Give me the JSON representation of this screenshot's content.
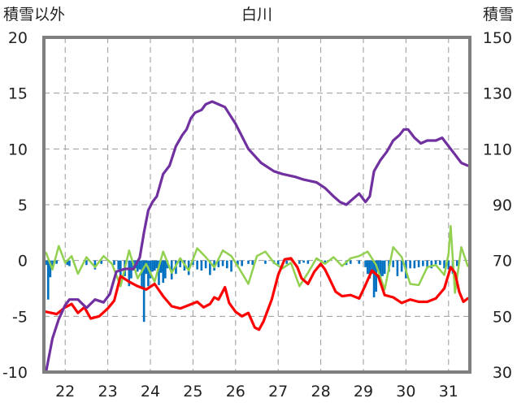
{
  "chart_data": {
    "type": "line",
    "title": "白川",
    "y_left_label": "積雪以外",
    "y_right_label": "積雪",
    "x_ticks": [
      "22",
      "23",
      "24",
      "25",
      "26",
      "27",
      "28",
      "29",
      "30",
      "31"
    ],
    "x_range": [
      21.5,
      31.5
    ],
    "y_left_range": [
      -10,
      20
    ],
    "y_left_ticks": [
      20,
      15,
      10,
      5,
      0,
      -5,
      -10
    ],
    "y_right_range": [
      30,
      150
    ],
    "y_right_ticks": [
      150,
      130,
      110,
      90,
      70,
      50,
      30
    ],
    "grid": true,
    "colors": {
      "snow_depth": "#7030a0",
      "temperature": "#ff0000",
      "sunshine": "#92d050",
      "precipitation": "#0070c0"
    },
    "series": [
      {
        "key": "snow_depth",
        "axis": "right",
        "x": [
          21.55,
          21.7,
          21.85,
          22.0,
          22.1,
          22.3,
          22.5,
          22.7,
          22.9,
          23.05,
          23.2,
          23.4,
          23.6,
          23.75,
          23.85,
          23.95,
          24.05,
          24.15,
          24.3,
          24.45,
          24.6,
          24.75,
          24.85,
          24.95,
          25.05,
          25.2,
          25.3,
          25.45,
          25.6,
          25.75,
          26.0,
          26.3,
          26.6,
          26.9,
          27.1,
          27.4,
          27.6,
          27.9,
          28.1,
          28.3,
          28.45,
          28.6,
          28.75,
          28.9,
          29.05,
          29.15,
          29.25,
          29.4,
          29.55,
          29.7,
          29.85,
          29.95,
          30.05,
          30.2,
          30.35,
          30.5,
          30.7,
          30.85,
          31.0,
          31.15,
          31.3,
          31.45
        ],
        "values": [
          30,
          42,
          49,
          54,
          56,
          56,
          53,
          56,
          55,
          58,
          66,
          67,
          67,
          71,
          80,
          88,
          91,
          93,
          101,
          104,
          111,
          115,
          117,
          121,
          123,
          124,
          126,
          127,
          126,
          125,
          119,
          110,
          105,
          102,
          101,
          100,
          99,
          98,
          96,
          93,
          91,
          90,
          92,
          94,
          91,
          93,
          102,
          106,
          109,
          113,
          115,
          117,
          117,
          114,
          112,
          113,
          113,
          114,
          111,
          108,
          105,
          104
        ]
      },
      {
        "key": "temperature",
        "axis": "left",
        "x": [
          21.55,
          21.8,
          22.0,
          22.15,
          22.3,
          22.45,
          22.6,
          22.8,
          23.0,
          23.15,
          23.3,
          23.5,
          23.7,
          23.9,
          24.1,
          24.3,
          24.5,
          24.7,
          24.9,
          25.1,
          25.25,
          25.4,
          25.5,
          25.6,
          25.75,
          25.85,
          26.0,
          26.15,
          26.3,
          26.45,
          26.55,
          26.65,
          26.75,
          26.85,
          27.0,
          27.15,
          27.3,
          27.45,
          27.55,
          27.7,
          27.85,
          28.0,
          28.1,
          28.2,
          28.35,
          28.5,
          28.7,
          28.9,
          29.05,
          29.2,
          29.35,
          29.5,
          29.7,
          29.9,
          30.1,
          30.3,
          30.5,
          30.7,
          30.9,
          31.05,
          31.15,
          31.25,
          31.35,
          31.45
        ],
        "values": [
          -4.6,
          -4.8,
          -4.2,
          -3.9,
          -4.7,
          -4.2,
          -5.2,
          -5.0,
          -4.3,
          -3.6,
          -1.4,
          -1.9,
          -2.3,
          -2.6,
          -2.1,
          -3.2,
          -4.1,
          -4.3,
          -4.0,
          -3.7,
          -4.2,
          -3.9,
          -3.3,
          -3.5,
          -2.4,
          -3.8,
          -4.6,
          -5.0,
          -4.7,
          -6.0,
          -6.2,
          -5.5,
          -4.5,
          -3.5,
          -1.3,
          0.1,
          0.2,
          -0.6,
          -1.6,
          -2.1,
          -1.0,
          -0.3,
          -0.8,
          -1.6,
          -2.8,
          -3.2,
          -3.1,
          -3.4,
          -2.2,
          -0.9,
          -1.4,
          -3.1,
          -3.3,
          -3.8,
          -3.5,
          -3.7,
          -3.7,
          -3.4,
          -2.5,
          -0.6,
          -1.1,
          -2.8,
          -3.7,
          -3.4
        ]
      },
      {
        "key": "sunshine",
        "axis": "left",
        "x": [
          21.55,
          21.7,
          21.85,
          22.0,
          22.15,
          22.3,
          22.5,
          22.7,
          22.9,
          23.1,
          23.3,
          23.5,
          23.7,
          23.9,
          24.1,
          24.3,
          24.5,
          24.7,
          24.9,
          25.1,
          25.3,
          25.5,
          25.7,
          25.9,
          26.1,
          26.3,
          26.5,
          26.7,
          26.9,
          27.1,
          27.3,
          27.5,
          27.7,
          27.9,
          28.1,
          28.3,
          28.5,
          28.7,
          28.9,
          29.1,
          29.3,
          29.5,
          29.7,
          29.9,
          30.1,
          30.3,
          30.5,
          30.7,
          30.9,
          31.0,
          31.05,
          31.15,
          31.3,
          31.45
        ],
        "values": [
          0.7,
          -0.8,
          1.3,
          -0.2,
          0.4,
          -1.2,
          0.3,
          -0.6,
          0.4,
          -0.3,
          -2.3,
          0.9,
          -1.6,
          -0.3,
          -1.9,
          0.8,
          -1.1,
          0.2,
          -0.9,
          1.1,
          0.3,
          -0.6,
          0.9,
          0.4,
          -0.8,
          -2.1,
          0.4,
          0.8,
          -0.2,
          -0.7,
          -0.2,
          -2.3,
          -1.1,
          0.2,
          -0.3,
          0.3,
          -0.5,
          0.2,
          0.4,
          0.8,
          -0.4,
          -2.6,
          1.2,
          0.3,
          -2.1,
          -2.2,
          -0.6,
          -0.4,
          -1.3,
          0.6,
          3.1,
          -2.9,
          1.2,
          -0.5
        ]
      }
    ],
    "bars": {
      "key": "precipitation",
      "axis": "left",
      "x": [
        21.55,
        21.6,
        21.65,
        21.7,
        21.8,
        22.05,
        22.1,
        22.5,
        22.7,
        22.85,
        23.15,
        23.25,
        23.3,
        23.4,
        23.5,
        23.55,
        23.6,
        23.65,
        23.7,
        23.75,
        23.8,
        23.85,
        23.9,
        23.95,
        24.0,
        24.05,
        24.1,
        24.15,
        24.2,
        24.25,
        24.3,
        24.35,
        24.4,
        24.5,
        24.6,
        24.7,
        24.8,
        24.9,
        25.0,
        25.1,
        25.2,
        25.3,
        25.4,
        25.5,
        25.6,
        25.7,
        25.8,
        25.9,
        26.05,
        26.15,
        26.3,
        26.4,
        26.7,
        26.9,
        27.0,
        27.2,
        27.5,
        27.6,
        27.7,
        28.1,
        28.6,
        28.7,
        28.9,
        29.05,
        29.1,
        29.15,
        29.2,
        29.25,
        29.3,
        29.35,
        29.4,
        29.45,
        29.5,
        29.6,
        29.7,
        29.8,
        29.9,
        30.0,
        30.1,
        30.2,
        30.3,
        30.4,
        30.5,
        30.6,
        30.7,
        30.8,
        30.9,
        31.0,
        31.1,
        31.2
      ],
      "values": [
        -0.4,
        -3.5,
        -1.5,
        -0.6,
        -0.3,
        -0.4,
        -0.5,
        -0.4,
        -0.8,
        -0.3,
        -0.4,
        -0.8,
        -1.5,
        -1.4,
        -2.3,
        -1.6,
        -0.9,
        -0.7,
        -1.0,
        -0.8,
        -2.5,
        -5.5,
        -1.2,
        -2.3,
        -1.6,
        -1.0,
        -0.9,
        -0.7,
        -2.2,
        -1.1,
        -2.0,
        -1.6,
        -0.7,
        -1.7,
        -1.2,
        -0.6,
        -0.9,
        -1.3,
        -0.4,
        -0.8,
        -0.9,
        -0.7,
        -1.3,
        -0.9,
        -0.6,
        -0.5,
        -0.7,
        -1.0,
        -0.4,
        -0.5,
        -0.3,
        -0.4,
        -0.3,
        -0.3,
        -0.4,
        -0.3,
        -0.3,
        -0.2,
        -0.3,
        -0.3,
        -0.4,
        -0.3,
        -0.3,
        -0.6,
        -1.2,
        -1.6,
        -1.2,
        -3.3,
        -2.8,
        -1.0,
        -2.0,
        -1.4,
        -1.2,
        -1.0,
        -0.6,
        -1.4,
        -1.0,
        -1.6,
        -0.7,
        -0.7,
        -0.6,
        -0.5,
        -0.7,
        -0.7,
        -0.5,
        -0.4,
        -0.7,
        -0.8,
        -1.2,
        -0.5
      ]
    }
  }
}
